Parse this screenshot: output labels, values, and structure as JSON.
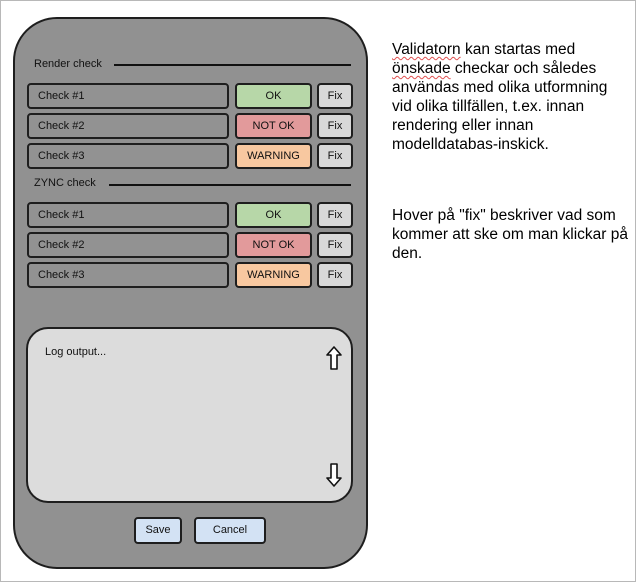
{
  "render_section": {
    "title": "Render check",
    "checks": [
      {
        "label": "Check #1",
        "status": "OK",
        "status_color": "#b7d7a8",
        "fix_label": "Fix"
      },
      {
        "label": "Check #2",
        "status": "NOT OK",
        "status_color": "#e29a9b",
        "fix_label": "Fix"
      },
      {
        "label": "Check #3",
        "status": "WARNING",
        "status_color": "#f8c8a0",
        "fix_label": "Fix"
      }
    ]
  },
  "zync_section": {
    "title": "ZYNC check",
    "checks": [
      {
        "label": "Check #1",
        "status": "OK",
        "status_color": "#b7d7a8",
        "fix_label": "Fix"
      },
      {
        "label": "Check #2",
        "status": "NOT OK",
        "status_color": "#e29a9b",
        "fix_label": "Fix"
      },
      {
        "label": "Check #3",
        "status": "WARNING",
        "status_color": "#f8c8a0",
        "fix_label": "Fix"
      }
    ]
  },
  "log": {
    "text": "Log output...",
    "scroll_up_icon": "up-arrow-icon",
    "scroll_down_icon": "down-arrow-icon"
  },
  "buttons": {
    "save": "Save",
    "cancel": "Cancel"
  },
  "notes": {
    "p1": {
      "w1": "Validatorn",
      "r1": " kan startas med ",
      "w2": "önskade",
      "r2": " checkar och således användas med olika utformning vid olika tillfällen, t.ex. innan rendering eller innan modelldatabas-inskick."
    },
    "p2": "Hover på \"fix\" beskriver vad som kommer att ske om man klickar på den."
  },
  "colors": {
    "panel": "#919191",
    "ok": "#b7d7a8",
    "not_ok": "#e29a9b",
    "warning": "#f8c8a0",
    "fix": "#d8d8d8",
    "dialog_button": "#d3e2f4",
    "log_bg": "#dcdcdc"
  }
}
